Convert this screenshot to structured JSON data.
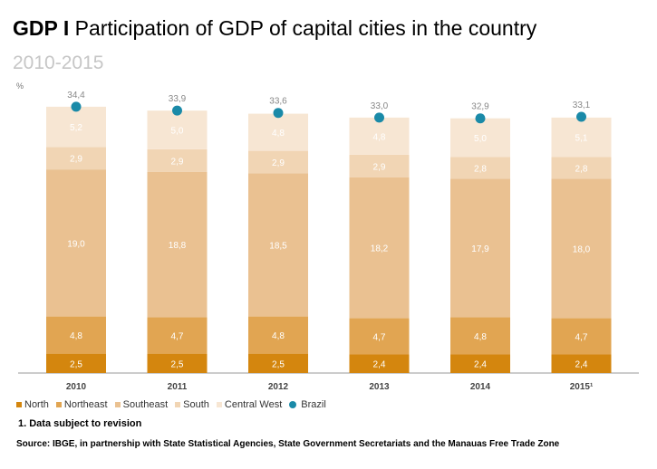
{
  "header": {
    "title_bold": "GDP I",
    "title_rest": " Participation of GDP of capital cities in the country",
    "subtitle": "2010-2015",
    "unit": "%"
  },
  "footnote": "1. Data subject to revision",
  "source": "Source: IBGE, in partnership with State Statistical Agencies, State Government Secretariats and the Manauas Free Trade Zone",
  "chart_data": {
    "type": "bar",
    "stacked": true,
    "categories": [
      "2010",
      "2011",
      "2012",
      "2013",
      "2014",
      "2015¹"
    ],
    "series": [
      {
        "name": "North",
        "color": "#d4860e",
        "values": [
          2.5,
          2.5,
          2.5,
          2.4,
          2.4,
          2.4
        ],
        "labels": [
          "2,5",
          "2,5",
          "2,5",
          "2,4",
          "2,4",
          "2,4"
        ]
      },
      {
        "name": "Northeast",
        "color": "#e1a552",
        "values": [
          4.8,
          4.7,
          4.8,
          4.7,
          4.8,
          4.7
        ],
        "labels": [
          "4,8",
          "4,7",
          "4,8",
          "4,7",
          "4,8",
          "4,7"
        ]
      },
      {
        "name": "Southeast",
        "color": "#eac191",
        "values": [
          19.0,
          18.8,
          18.5,
          18.2,
          17.9,
          18.0
        ],
        "labels": [
          "19,0",
          "18,8",
          "18,5",
          "18,2",
          "17,9",
          "18,0"
        ]
      },
      {
        "name": "South",
        "color": "#f1d5b4",
        "values": [
          2.9,
          2.9,
          2.9,
          2.9,
          2.8,
          2.8
        ],
        "labels": [
          "2,9",
          "2,9",
          "2,9",
          "2,9",
          "2,8",
          "2,8"
        ]
      },
      {
        "name": "Central West",
        "color": "#f7e6d3",
        "values": [
          5.2,
          5.0,
          4.8,
          4.8,
          5.0,
          5.1
        ],
        "labels": [
          "5,2",
          "5,0",
          "4,8",
          "4,8",
          "5,0",
          "5,1"
        ]
      }
    ],
    "brazil": {
      "name": "Brazil",
      "color": "#1a8aa8",
      "values": [
        34.4,
        33.9,
        33.6,
        33.0,
        32.9,
        33.1
      ],
      "labels": [
        "34,4",
        "33,9",
        "33,6",
        "33,0",
        "32,9",
        "33,1"
      ]
    },
    "ylim": [
      0,
      36
    ],
    "grid": false,
    "legend_position": "bottom-left"
  }
}
